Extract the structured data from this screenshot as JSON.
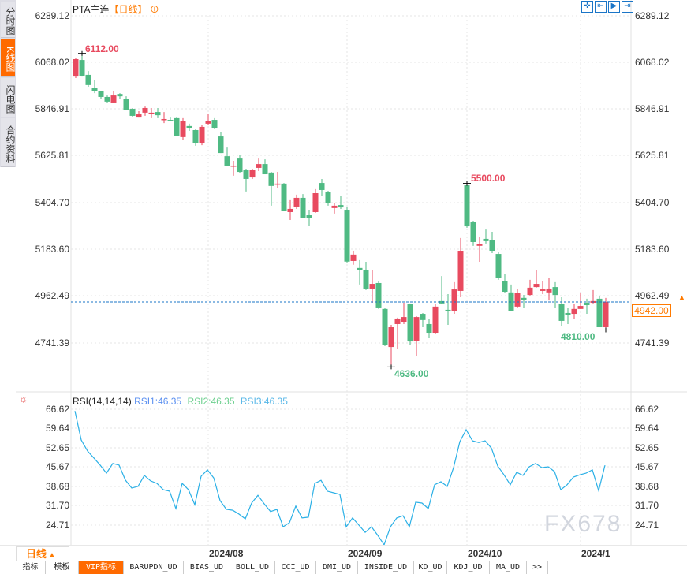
{
  "side_tabs": [
    {
      "label": "分时图",
      "active": false
    },
    {
      "label": "K线图",
      "active": true
    },
    {
      "label": "闪电图",
      "active": false
    },
    {
      "label": "合约资料",
      "active": false
    }
  ],
  "title": {
    "symbol": "PTA主连",
    "period": "【日线】",
    "add_icon": "plus-circle-icon"
  },
  "toolbar": [
    {
      "icon": "crosshair-icon"
    },
    {
      "icon": "scroll-left-icon"
    },
    {
      "icon": "play-icon"
    },
    {
      "icon": "scroll-end-icon"
    }
  ],
  "price_axis": [
    "6289.12",
    "6068.02",
    "5846.91",
    "5625.81",
    "5404.70",
    "5183.60",
    "4962.49",
    "4741.39"
  ],
  "current_price": "4942.00",
  "annotations": {
    "high": "6112.00",
    "local_high": "5500.00",
    "low": "4636.00",
    "local_low": "4810.00"
  },
  "rsi": {
    "header": "RSI(14,14,14)",
    "rsi1": "RSI1:46.35",
    "rsi2": "RSI2:46.35",
    "rsi3": "RSI3:46.35",
    "axis": [
      "66.62",
      "59.64",
      "52.65",
      "45.67",
      "38.68",
      "31.70",
      "24.71"
    ]
  },
  "period_selector": {
    "label": "日线",
    "icon": "triangle-up-icon"
  },
  "x_axis": [
    {
      "label": "2024/08",
      "index": 21
    },
    {
      "label": "2024/09",
      "index": 43
    },
    {
      "label": "2024/10",
      "index": 62
    },
    {
      "label": "2024/1",
      "index": 80
    }
  ],
  "bottom_tabs": [
    "指标",
    "模板",
    "VIP指标",
    "BARUPDN_UD",
    "BIAS_UD",
    "BOLL_UD",
    "CCI_UD",
    "DMI_UD",
    "INSIDE_UD",
    "KD_UD",
    "KDJ_UD",
    "MA_UD",
    ">>"
  ],
  "watermark": "FX678",
  "colors": {
    "up": "#e84a5f",
    "down": "#4fba83",
    "rsi_line": "#2bb0e6",
    "accent": "#ff6a00",
    "current_line": "#1a75c7"
  },
  "chart_data": {
    "type": "candlestick",
    "ylim": [
      4741.39,
      6289.12
    ],
    "candles_ohlc": [
      [
        6003,
        6092,
        5996,
        6085
      ],
      [
        6081,
        6112,
        6003,
        6007
      ],
      [
        6011,
        6029,
        5955,
        5963
      ],
      [
        5951,
        5985,
        5925,
        5933
      ],
      [
        5933,
        5936,
        5899,
        5907
      ],
      [
        5907,
        5914,
        5877,
        5885
      ],
      [
        5881,
        5933,
        5881,
        5914
      ],
      [
        5921,
        5925,
        5899,
        5910
      ],
      [
        5899,
        5910,
        5847,
        5847
      ],
      [
        5851,
        5855,
        5814,
        5818
      ],
      [
        5810,
        5840,
        5810,
        5825
      ],
      [
        5833,
        5862,
        5818,
        5855
      ],
      [
        5831,
        5855,
        5807,
        5833
      ],
      [
        5836,
        5855,
        5807,
        5821
      ],
      [
        5799,
        5836,
        5784,
        5803
      ],
      [
        5799,
        5810,
        5792,
        5795
      ],
      [
        5807,
        5810,
        5725,
        5725
      ],
      [
        5718,
        5807,
        5706,
        5792
      ],
      [
        5770,
        5781,
        5747,
        5762
      ],
      [
        5751,
        5758,
        5677,
        5688
      ],
      [
        5688,
        5773,
        5680,
        5766
      ],
      [
        5781,
        5829,
        5773,
        5795
      ],
      [
        5799,
        5807,
        5758,
        5762
      ],
      [
        5721,
        5740,
        5643,
        5643
      ],
      [
        5628,
        5669,
        5584,
        5584
      ],
      [
        5581,
        5606,
        5536,
        5584
      ],
      [
        5617,
        5632,
        5550,
        5554
      ],
      [
        5562,
        5569,
        5462,
        5521
      ],
      [
        5528,
        5569,
        5521,
        5562
      ],
      [
        5573,
        5617,
        5558,
        5591
      ],
      [
        5591,
        5613,
        5543,
        5543
      ],
      [
        5551,
        5554,
        5395,
        5488
      ],
      [
        5495,
        5554,
        5480,
        5499
      ],
      [
        5499,
        5502,
        5369,
        5369
      ],
      [
        5365,
        5421,
        5328,
        5380
      ],
      [
        5391,
        5447,
        5380,
        5432
      ],
      [
        5432,
        5450,
        5339,
        5339
      ],
      [
        5350,
        5376,
        5298,
        5339
      ],
      [
        5365,
        5473,
        5361,
        5454
      ],
      [
        5502,
        5521,
        5439,
        5469
      ],
      [
        5458,
        5465,
        5395,
        5406
      ],
      [
        5384,
        5406,
        5358,
        5395
      ],
      [
        5398,
        5439,
        5380,
        5387
      ],
      [
        5376,
        5387,
        5128,
        5132
      ],
      [
        5135,
        5183,
        5117,
        5165
      ],
      [
        5102,
        5139,
        5024,
        5091
      ],
      [
        5091,
        5131,
        4998,
        5005
      ],
      [
        5005,
        5094,
        4938,
        5027
      ],
      [
        5031,
        5039,
        4909,
        4916
      ],
      [
        4909,
        4912,
        4734,
        4741
      ],
      [
        4730,
        4834,
        4636,
        4823
      ],
      [
        4838,
        4868,
        4719,
        4864
      ],
      [
        4849,
        4938,
        4838,
        4871
      ],
      [
        4931,
        4935,
        4741,
        4756
      ],
      [
        4760,
        4875,
        4689,
        4871
      ],
      [
        4886,
        4890,
        4823,
        4857
      ],
      [
        4838,
        4864,
        4771,
        4797
      ],
      [
        4797,
        4931,
        4790,
        4920
      ],
      [
        4946,
        5064,
        4931,
        4935
      ],
      [
        4905,
        4979,
        4834,
        4901
      ],
      [
        4901,
        5035,
        4886,
        5001
      ],
      [
        4994,
        5243,
        4964,
        5183
      ],
      [
        5491,
        5500,
        5291,
        5298
      ],
      [
        5320,
        5324,
        5206,
        5224
      ],
      [
        5206,
        5250,
        5131,
        5213
      ],
      [
        5239,
        5283,
        5217,
        5228
      ],
      [
        5235,
        5272,
        5172,
        5183
      ],
      [
        5168,
        5176,
        5046,
        5054
      ],
      [
        5042,
        5072,
        4983,
        4990
      ],
      [
        4987,
        5024,
        4901,
        4901
      ],
      [
        4920,
        5001,
        4912,
        4983
      ],
      [
        4961,
        4975,
        4912,
        4953
      ],
      [
        4975,
        5046,
        4972,
        5009
      ],
      [
        5012,
        5094,
        5009,
        5027
      ],
      [
        4994,
        5039,
        4979,
        5001
      ],
      [
        4987,
        5053,
        4949,
        5005
      ],
      [
        5012,
        5035,
        4912,
        4975
      ],
      [
        4931,
        4964,
        4827,
        4853
      ],
      [
        4890,
        4912,
        4838,
        4879
      ],
      [
        4886,
        4931,
        4864,
        4909
      ],
      [
        4909,
        4987,
        4909,
        4923
      ],
      [
        4938,
        4957,
        4886,
        4927
      ],
      [
        4938,
        4998,
        4935,
        4946
      ],
      [
        4957,
        4968,
        4823,
        4823
      ],
      [
        4823,
        4961,
        4810,
        4942
      ]
    ],
    "rsi_values": [
      66.0,
      55.5,
      51.5,
      49.0,
      46.4,
      43.5,
      47.0,
      46.4,
      41.0,
      38.1,
      38.7,
      42.7,
      40.7,
      39.8,
      37.5,
      37.0,
      30.7,
      39.8,
      37.5,
      32.1,
      42.4,
      44.7,
      41.8,
      33.6,
      30.4,
      30.1,
      28.7,
      27.0,
      32.7,
      35.5,
      32.4,
      29.6,
      30.4,
      24.1,
      25.6,
      31.6,
      27.3,
      27.6,
      39.8,
      40.9,
      37.0,
      36.4,
      35.8,
      24.1,
      27.3,
      24.7,
      22.1,
      24.1,
      21.0,
      17.6,
      24.1,
      27.3,
      28.1,
      24.1,
      33.0,
      32.7,
      30.7,
      39.3,
      40.4,
      38.7,
      45.5,
      54.9,
      59.2,
      55.2,
      54.6,
      55.2,
      52.6,
      46.1,
      42.9,
      39.3,
      43.8,
      42.7,
      45.8,
      47.0,
      45.5,
      45.8,
      44.1,
      37.5,
      39.3,
      42.1,
      42.9,
      43.5,
      44.7,
      37.2,
      46.35
    ],
    "rsi_ylim": [
      24.71,
      66.62
    ],
    "grid": true
  }
}
